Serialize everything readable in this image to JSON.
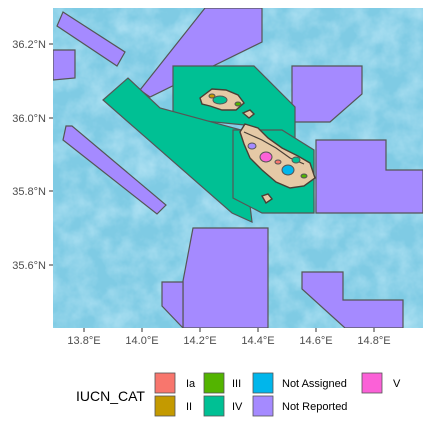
{
  "map": {
    "x_ticks": [
      "13.8°E",
      "14.0°E",
      "14.2°E",
      "14.4°E",
      "14.6°E",
      "14.8°E"
    ],
    "y_ticks": [
      "36.2°N",
      "36.0°N",
      "35.8°N",
      "35.6°N"
    ],
    "colors": {
      "sea_base": "#7fcbe4",
      "island_land": "#e5c9a6",
      "island_dark": "#4a3f35",
      "polygon_border": "#555555"
    },
    "island_labels": []
  },
  "legend": {
    "title": "IUCN_CAT",
    "items": [
      {
        "label": "Ia",
        "color": "#f8766d"
      },
      {
        "label": "II",
        "color": "#c49a00"
      },
      {
        "label": "III",
        "color": "#53b400"
      },
      {
        "label": "IV",
        "color": "#00c094"
      },
      {
        "label": "Not Assigned",
        "color": "#00b6eb"
      },
      {
        "label": "Not Reported",
        "color": "#a58aff"
      },
      {
        "label": "V",
        "color": "#fb61d7"
      }
    ]
  }
}
